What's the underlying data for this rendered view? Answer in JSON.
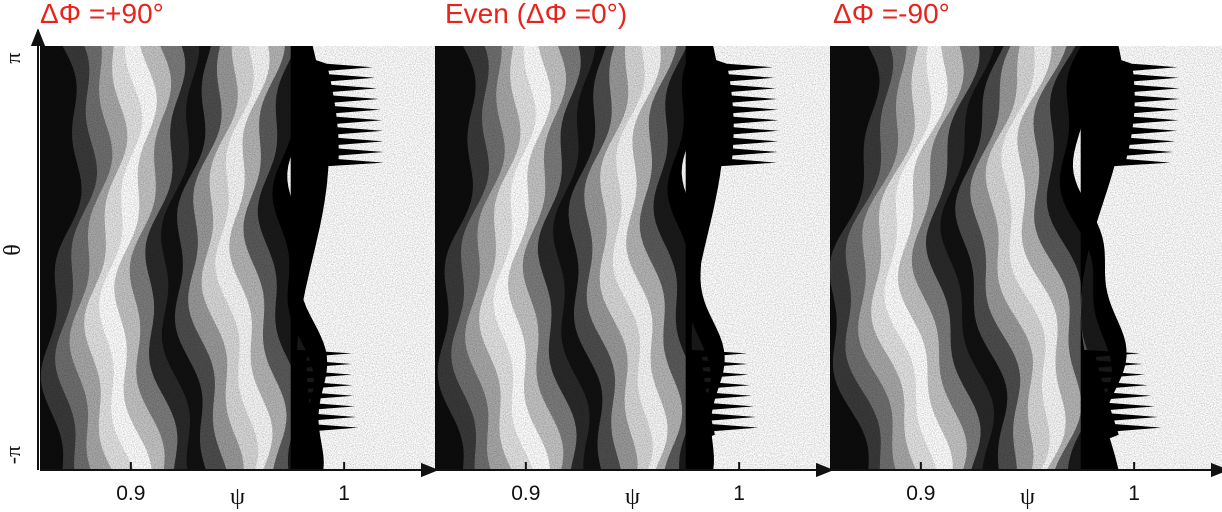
{
  "figure": {
    "y_axis": {
      "label": "θ",
      "top_tick": "π",
      "bottom_tick": "-π"
    },
    "x_tick_labels": [
      "0.9",
      "1"
    ],
    "x_axis_label": "ψ",
    "panels": [
      {
        "title": "ΔΦ =+90°"
      },
      {
        "title": "Even (ΔΦ =0°)"
      },
      {
        "title": "ΔΦ =-90°"
      }
    ],
    "colors": {
      "title": "#e8231c",
      "axis": "#111111"
    }
  }
}
